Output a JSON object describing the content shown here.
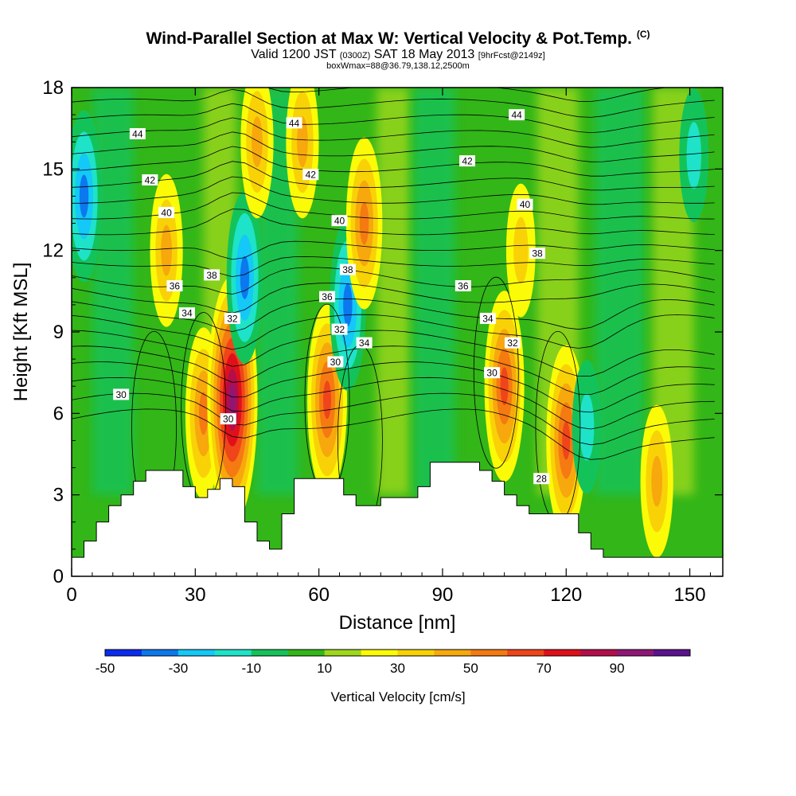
{
  "title": {
    "main": "Wind-Parallel Section at Max W: Vertical Velocity & Pot.Temp.",
    "copyright": "(C)",
    "valid_prefix": "Valid 1200 JST",
    "valid_utc": "(0300Z)",
    "valid_date": "SAT 18 May 2013",
    "forecast": "[9hrFcst@2149z]",
    "box_info": "boxWmax=88@36.79,138.12,2500m"
  },
  "chart_data": {
    "type": "heatmap",
    "xlabel": "Distance [nm]",
    "ylabel": "Height [Kft MSL]",
    "xlim": [
      0,
      158
    ],
    "ylim": [
      0,
      18
    ],
    "x_ticks": [
      0,
      30,
      60,
      90,
      120,
      150
    ],
    "y_ticks": [
      0,
      3,
      6,
      9,
      12,
      15,
      18
    ],
    "colorbar": {
      "label": "Vertical Velocity [cm/s]",
      "tick_labels": [
        "-50",
        "-30",
        "-10",
        "10",
        "30",
        "50",
        "70",
        "90"
      ],
      "colors": [
        "#0b2bf0",
        "#0c78ee",
        "#14c8f8",
        "#1ee3c8",
        "#13c35a",
        "#33b618",
        "#9ed81a",
        "#fbfb07",
        "#f8d207",
        "#f7a80d",
        "#f57a12",
        "#f0451a",
        "#e0101a",
        "#b30e4a",
        "#901676",
        "#5a1290"
      ]
    },
    "velocity_cores": [
      {
        "x": 3,
        "z": 14,
        "w": -35
      },
      {
        "x": 23,
        "z": 12,
        "w": 30
      },
      {
        "x": 32,
        "z": 6,
        "w": 35
      },
      {
        "x": 39,
        "z": 6.5,
        "w": 80
      },
      {
        "x": 42,
        "z": 11,
        "w": -40
      },
      {
        "x": 45,
        "z": 16,
        "w": 30
      },
      {
        "x": 56,
        "z": 16,
        "w": 25
      },
      {
        "x": 62,
        "z": 6.5,
        "w": 50
      },
      {
        "x": 67,
        "z": 10,
        "w": -35
      },
      {
        "x": 71,
        "z": 13,
        "w": 35
      },
      {
        "x": 105,
        "z": 7,
        "w": 50
      },
      {
        "x": 109,
        "z": 12,
        "w": 20
      },
      {
        "x": 120,
        "z": 5,
        "w": 50
      },
      {
        "x": 125,
        "z": 5.5,
        "w": -15
      },
      {
        "x": 142,
        "z": 3.5,
        "w": 25
      },
      {
        "x": 151,
        "z": 15.5,
        "w": -15
      }
    ],
    "isentrope_labels": [
      {
        "text": "44",
        "x": 16,
        "z": 16.3
      },
      {
        "text": "42",
        "x": 19,
        "z": 14.6
      },
      {
        "text": "40",
        "x": 23,
        "z": 13.4
      },
      {
        "text": "38",
        "x": 34,
        "z": 11.1
      },
      {
        "text": "36",
        "x": 25,
        "z": 10.7
      },
      {
        "text": "34",
        "x": 28,
        "z": 9.7
      },
      {
        "text": "32",
        "x": 39,
        "z": 9.5
      },
      {
        "text": "30",
        "x": 12,
        "z": 6.7
      },
      {
        "text": "30",
        "x": 38,
        "z": 5.8
      },
      {
        "text": "44",
        "x": 54,
        "z": 16.7
      },
      {
        "text": "42",
        "x": 58,
        "z": 14.8
      },
      {
        "text": "40",
        "x": 65,
        "z": 13.1
      },
      {
        "text": "38",
        "x": 67,
        "z": 11.3
      },
      {
        "text": "36",
        "x": 62,
        "z": 10.3
      },
      {
        "text": "32",
        "x": 65,
        "z": 9.1
      },
      {
        "text": "34",
        "x": 71,
        "z": 8.6
      },
      {
        "text": "30",
        "x": 64,
        "z": 7.9
      },
      {
        "text": "44",
        "x": 108,
        "z": 17
      },
      {
        "text": "42",
        "x": 96,
        "z": 15.3
      },
      {
        "text": "40",
        "x": 110,
        "z": 13.7
      },
      {
        "text": "38",
        "x": 113,
        "z": 11.9
      },
      {
        "text": "36",
        "x": 95,
        "z": 10.7
      },
      {
        "text": "34",
        "x": 101,
        "z": 9.5
      },
      {
        "text": "32",
        "x": 107,
        "z": 8.6
      },
      {
        "text": "30",
        "x": 102,
        "z": 7.5
      },
      {
        "text": "28",
        "x": 114,
        "z": 3.6
      }
    ],
    "terrain": {
      "x": [
        0,
        3,
        3,
        6,
        6,
        9,
        9,
        12,
        12,
        15,
        15,
        18,
        18,
        21,
        21,
        27,
        27,
        30,
        30,
        33,
        33,
        36,
        36,
        39,
        39,
        42,
        42,
        45,
        45,
        48,
        48,
        51,
        51,
        54,
        54,
        57,
        57,
        66,
        66,
        69,
        69,
        72,
        72,
        75,
        75,
        84,
        84,
        87,
        87,
        99,
        99,
        102,
        102,
        105,
        105,
        108,
        108,
        111,
        111,
        114,
        114,
        117,
        117,
        123,
        123,
        126,
        126,
        129,
        129,
        158
      ],
      "z": [
        0.7,
        0.7,
        1.3,
        1.3,
        2.0,
        2.0,
        2.6,
        2.6,
        3.0,
        3.0,
        3.5,
        3.5,
        3.9,
        3.9,
        3.9,
        3.9,
        3.3,
        3.3,
        2.9,
        2.9,
        3.2,
        3.2,
        3.6,
        3.6,
        3.3,
        3.3,
        2.0,
        2.0,
        1.3,
        1.3,
        1.0,
        1.0,
        2.3,
        2.3,
        3.6,
        3.6,
        3.6,
        3.6,
        3.0,
        3.0,
        2.6,
        2.6,
        2.6,
        2.6,
        2.9,
        2.9,
        3.3,
        3.3,
        4.2,
        4.2,
        3.9,
        3.9,
        3.5,
        3.5,
        3.0,
        3.0,
        2.6,
        2.6,
        2.3,
        2.3,
        2.3,
        2.3,
        2.3,
        2.3,
        1.6,
        1.6,
        1.0,
        1.0,
        0.7,
        0.7
      ]
    }
  }
}
